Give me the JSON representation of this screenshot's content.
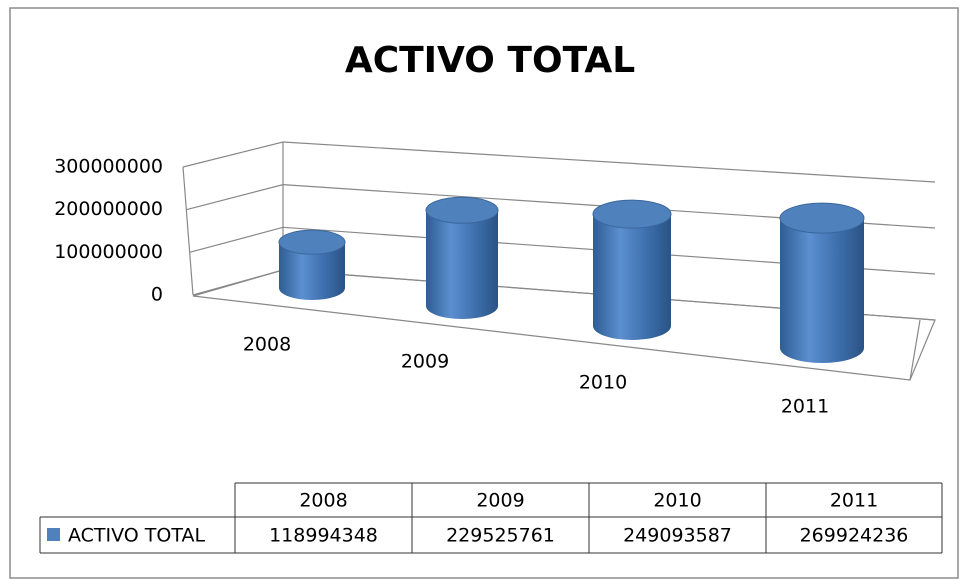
{
  "chart_data": {
    "type": "bar3d",
    "title": "ACTIVO TOTAL",
    "categories": [
      "2008",
      "2009",
      "2010",
      "2011"
    ],
    "series": [
      {
        "name": "ACTIVO TOTAL",
        "color": "#4f81bd",
        "values": [
          118994348,
          229525761,
          249093587,
          269924236
        ]
      }
    ],
    "ylim": [
      0,
      300000000
    ],
    "yticks": [
      0,
      100000000,
      200000000,
      300000000
    ],
    "grid": true,
    "data_table": true
  }
}
